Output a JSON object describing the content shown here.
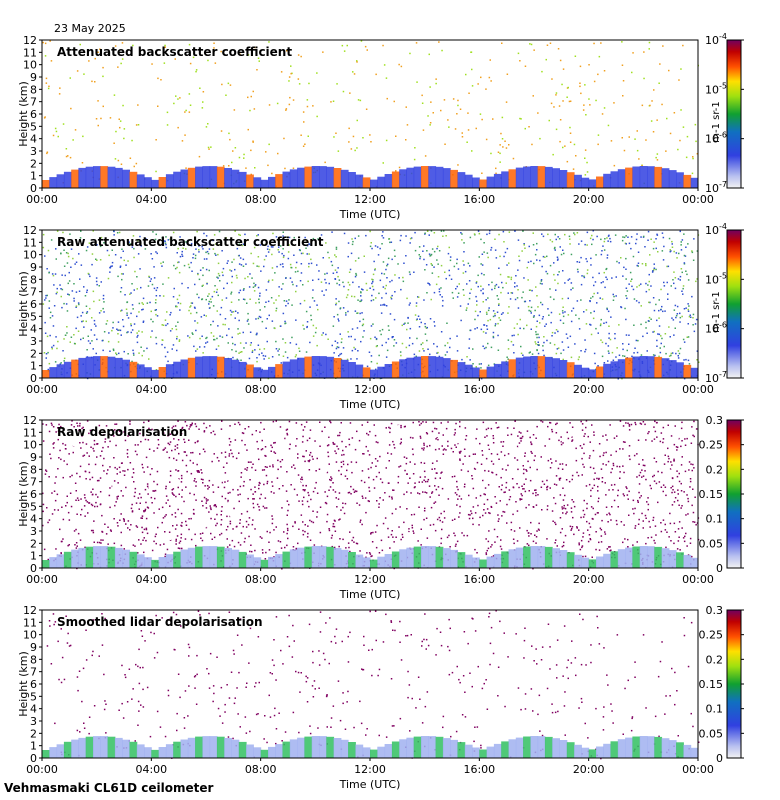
{
  "date_label": "23 May 2025",
  "footer_label": "Vehmasmaki CL61D ceilometer",
  "chart_data": [
    {
      "type": "heatmap",
      "title": "Attenuated backscatter coefficient",
      "xlabel": "Time (UTC)",
      "ylabel": "Height (km)",
      "xticks": [
        "00:00",
        "04:00",
        "08:00",
        "12:00",
        "16:00",
        "20:00",
        "00:00"
      ],
      "yticks": [
        "0",
        "1",
        "2",
        "3",
        "4",
        "5",
        "6",
        "7",
        "8",
        "9",
        "10",
        "11",
        "12"
      ],
      "ylim": [
        0,
        12
      ],
      "colorbar": {
        "scale": "log",
        "ticks": [
          "10-7",
          "10-6",
          "10-5",
          "10-4"
        ],
        "tick_display": [
          [
            "10",
            "-7"
          ],
          [
            "10",
            "-6"
          ],
          [
            "10",
            "-5"
          ],
          [
            "10",
            "-4"
          ]
        ],
        "unit": "m-1 sr-1"
      }
    },
    {
      "type": "heatmap",
      "title": "Raw attenuated backscatter coefficient",
      "xlabel": "Time (UTC)",
      "ylabel": "Height (km)",
      "xticks": [
        "00:00",
        "04:00",
        "08:00",
        "12:00",
        "16:00",
        "20:00",
        "00:00"
      ],
      "yticks": [
        "0",
        "1",
        "2",
        "3",
        "4",
        "5",
        "6",
        "7",
        "8",
        "9",
        "10",
        "11",
        "12"
      ],
      "ylim": [
        0,
        12
      ],
      "colorbar": {
        "scale": "log",
        "ticks": [
          "10-7",
          "10-6",
          "10-5",
          "10-4"
        ],
        "tick_display": [
          [
            "10",
            "-7"
          ],
          [
            "10",
            "-6"
          ],
          [
            "10",
            "-5"
          ],
          [
            "10",
            "-4"
          ]
        ],
        "unit": "m-1 sr-1"
      }
    },
    {
      "type": "heatmap",
      "title": "Raw depolarisation",
      "xlabel": "Time (UTC)",
      "ylabel": "Height (km)",
      "xticks": [
        "00:00",
        "04:00",
        "08:00",
        "12:00",
        "16:00",
        "20:00",
        "00:00"
      ],
      "yticks": [
        "0",
        "1",
        "2",
        "3",
        "4",
        "5",
        "6",
        "7",
        "8",
        "9",
        "10",
        "11",
        "12"
      ],
      "ylim": [
        0,
        12
      ],
      "colorbar": {
        "scale": "linear",
        "ticks": [
          "0",
          "0.05",
          "0.1",
          "0.15",
          "0.2",
          "0.25",
          "0.3"
        ],
        "range": [
          0,
          0.3
        ]
      }
    },
    {
      "type": "heatmap",
      "title": "Smoothed lidar depolarisation",
      "xlabel": "Time (UTC)",
      "ylabel": "Height (km)",
      "xticks": [
        "00:00",
        "04:00",
        "08:00",
        "12:00",
        "16:00",
        "20:00",
        "00:00"
      ],
      "yticks": [
        "0",
        "1",
        "2",
        "3",
        "4",
        "5",
        "6",
        "7",
        "8",
        "9",
        "10",
        "11",
        "12"
      ],
      "ylim": [
        0,
        12
      ],
      "colorbar": {
        "scale": "linear",
        "ticks": [
          "0",
          "0.05",
          "0.1",
          "0.15",
          "0.2",
          "0.25",
          "0.3"
        ],
        "range": [
          0,
          0.3
        ]
      }
    }
  ]
}
